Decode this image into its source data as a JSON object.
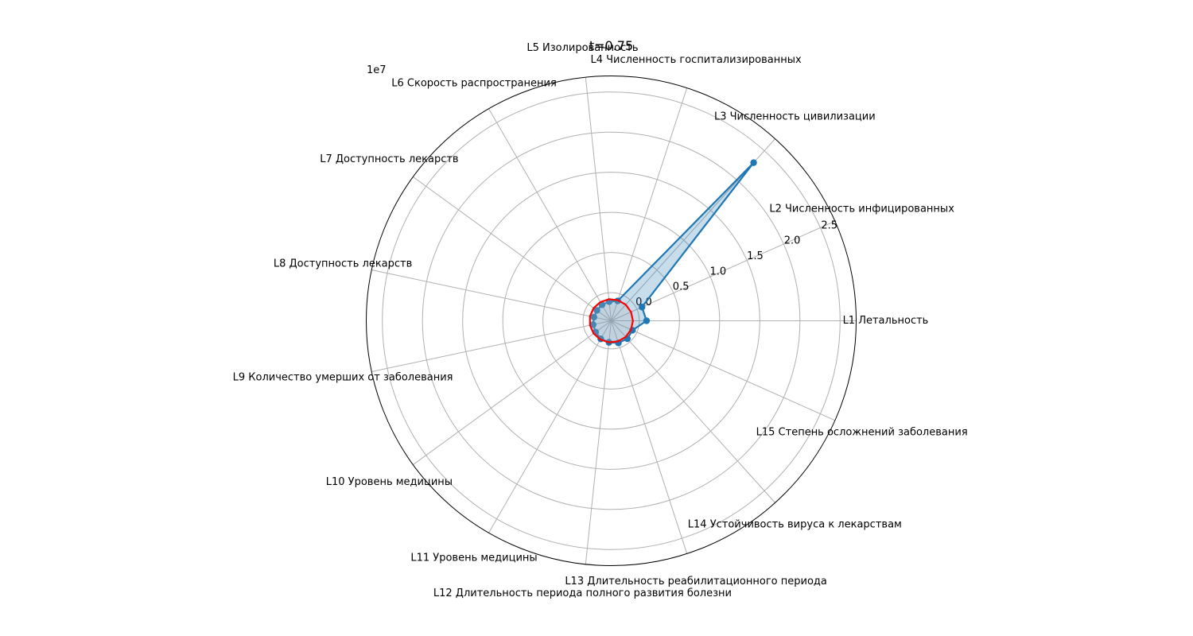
{
  "chart_data": {
    "type": "radar",
    "title": "t=0.75",
    "offset_label": "1e7",
    "categories": [
      "L1 Летальность",
      "L2 Численность инфицированных",
      "L3 Численность цивилизации",
      "L4 Численность госпитализированных",
      "L5 Изолированность",
      "L6 Скорость распространения",
      "L7 Доступность лекарств",
      "L8 Доступность лекарств",
      "L9 Количество умерших от заболевания",
      "L10 Уровень медицины",
      "L11 Уровень медицины",
      "L12 Длительность периода полного развития болезни",
      "L13 Длительность реабилитационного периода",
      "L14 Устойчивость вируса к лекарствам",
      "L15 Степень осложнений заболевания"
    ],
    "r_ticks": [
      0.0,
      0.5,
      1.0,
      1.5,
      2.0,
      2.5
    ],
    "r_tick_labels": [
      "0.0",
      "0.5",
      "1.0",
      "1.5",
      "2.0",
      "2.5"
    ],
    "rlim": [
      -0.35,
      2.7
    ],
    "series": [
      {
        "values": [
          0.09,
          0.07,
          2.3,
          -0.09,
          -0.11,
          -0.12,
          -0.13,
          -0.13,
          -0.12,
          -0.11,
          -0.09,
          -0.08,
          -0.06,
          -0.05,
          -0.06
        ],
        "color": "#1f77b4",
        "fill": "#1f77b4"
      },
      {
        "values": [
          -0.08,
          -0.08,
          -0.08,
          -0.08,
          -0.08,
          -0.08,
          -0.08,
          -0.08,
          -0.08,
          -0.08,
          -0.08,
          -0.08,
          -0.08,
          -0.08,
          -0.08
        ],
        "color": "#ff0000",
        "fill": "#b0b0b0"
      }
    ],
    "grid": true,
    "legend": "none"
  }
}
